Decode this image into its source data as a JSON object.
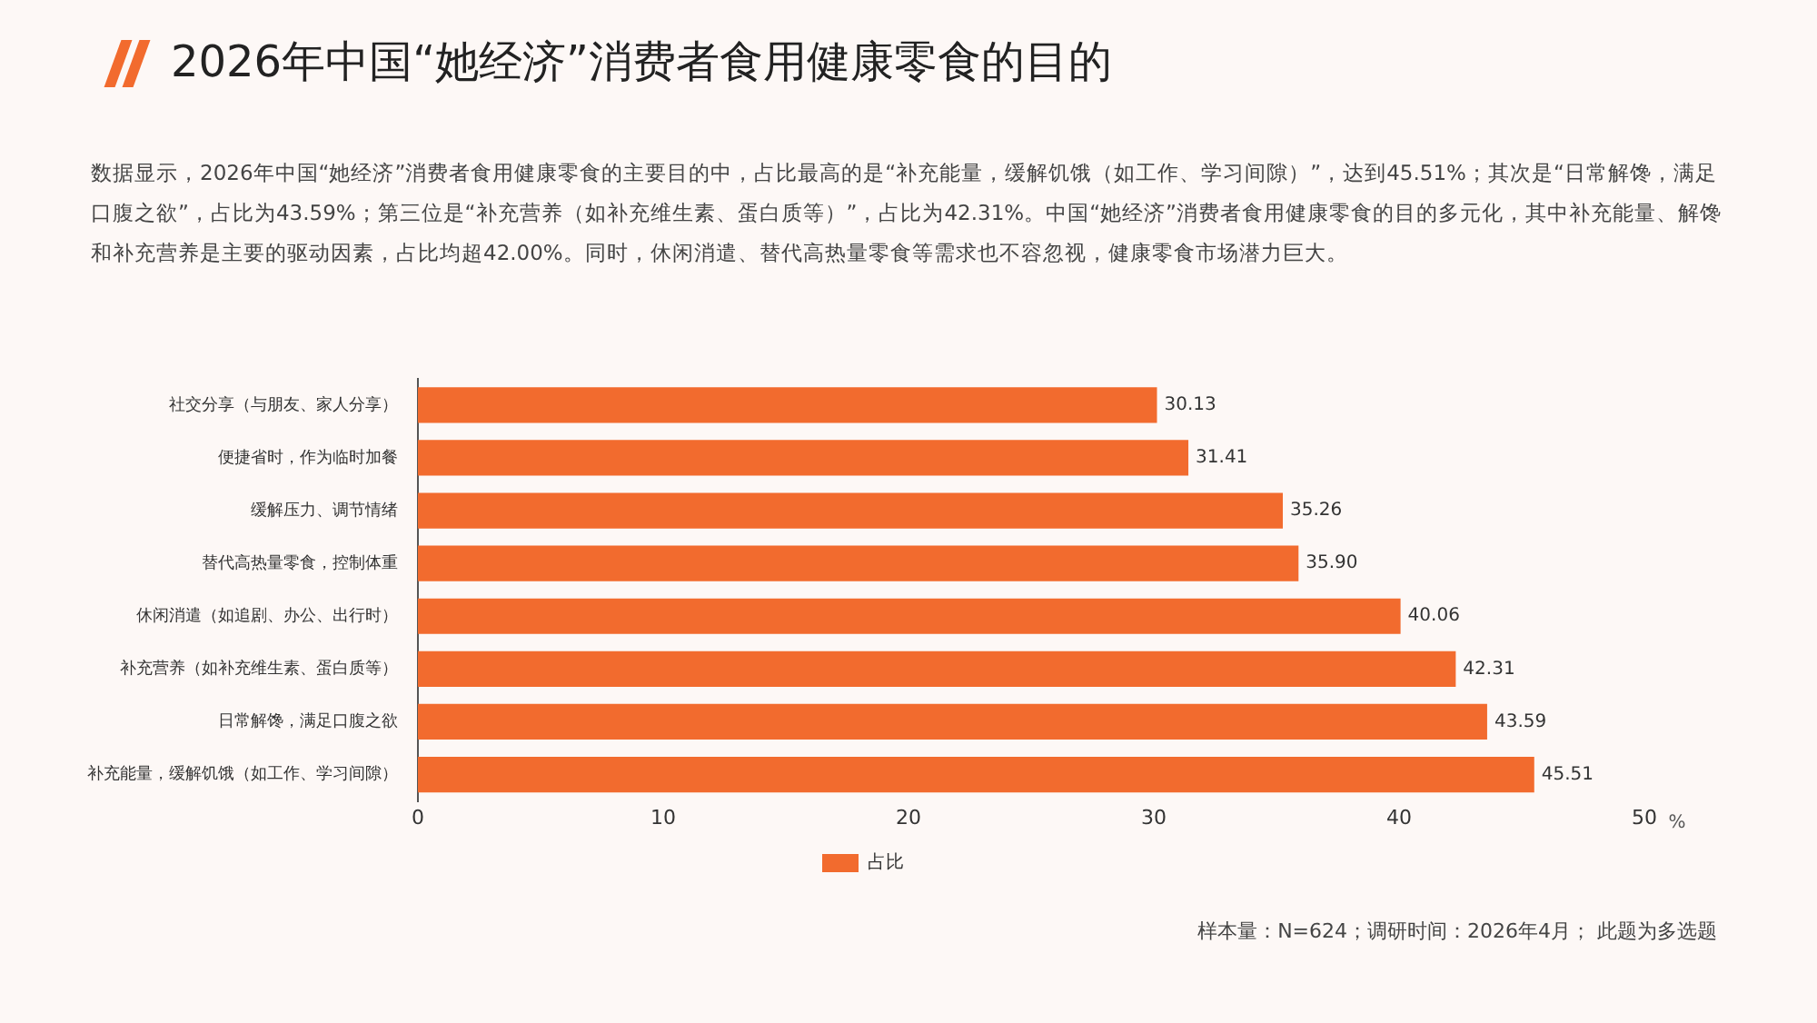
{
  "chart_data": {
    "type": "bar",
    "orientation": "horizontal",
    "title": "2026年中国“她经济”消费者食用健康零食的目的",
    "subtitle": "数据显示，2026年中国“她经济”消费者食用健康零食的主要目的中，占比最高的是“补充能量，缓解饥饿（如工作、学习间隙）”，达到45.51%；其次是“日常解馋，满足口腹之欲”，占比为43.59%；第三位是“补充营养（如补充维生素、蛋白质等）”，占比为42.31%。中国“她经济”消费者食用健康零食的目的多元化，其中补充能量、解馋和补充营养是主要的驱动因素，占比均超42.00%。同时，休闲消遣、替代高热量零食等需求也不容忽视，健康零食市场潜力巨大。",
    "xlabel": "%",
    "categories": [
      "社交分享（与朋友、家人分享）",
      "便捷省时，作为临时加餐",
      "缓解压力、调节情绪",
      "替代高热量零食，控制体重",
      "休闲消遣（如追剧、办公、出行时）",
      "补充营养（如补充维生素、蛋白质等）",
      "日常解馋，满足口腹之欲",
      "补充能量，缓解饥饿（如工作、学习间隙）"
    ],
    "series": [
      {
        "name": "占比",
        "color": "#f26b2e",
        "values": [
          30.13,
          31.41,
          35.26,
          35.9,
          40.06,
          42.31,
          43.59,
          45.51
        ]
      }
    ],
    "value_labels": [
      "30.13",
      "31.41",
      "35.26",
      "35.90",
      "40.06",
      "42.31",
      "43.59",
      "45.51"
    ],
    "xlim": [
      0,
      50
    ],
    "xticks": [
      0,
      10,
      20,
      30,
      40,
      50
    ],
    "legend": "bottom",
    "grid": false,
    "annotations": [
      "样本量：N=624；调研时间：2026年4月； 此题为多选题"
    ]
  }
}
